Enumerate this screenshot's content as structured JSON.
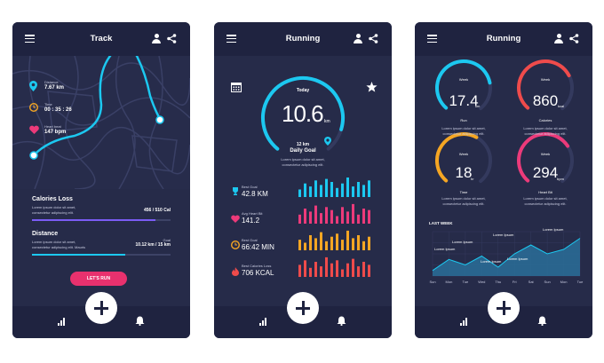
{
  "screens": [
    {
      "title": "Track",
      "stats": [
        {
          "label": "Distance",
          "value": "7.67 km"
        },
        {
          "label": "Time",
          "value": "00 : 35 : 26"
        },
        {
          "label": "Heart beat",
          "value": "147 bpm"
        }
      ],
      "calories": {
        "title": "Calories Loss",
        "desc1": "Lorem ipsum dolor sit amet,",
        "desc2": "consectetur adipiscing elit.",
        "value": "456 / 510 Cal",
        "progress": 0.89
      },
      "distance": {
        "title": "Distance",
        "desc1": "Lorem ipsum dolor sit amet,",
        "desc2": "consectetur adipiscing elit. Mauris",
        "unit_label": "Goal",
        "value": "10.12 km / 15 km",
        "progress": 0.67
      },
      "cta": "LET'S RUN"
    },
    {
      "title": "Running",
      "gauge": {
        "top": "Today",
        "value": "10.6",
        "unit": "km",
        "goal": "12 km",
        "goal_label": "Daily Goal",
        "desc1": "Lorem ipsum dolor sit amet,",
        "desc2": "consectetur adipiscing elit.",
        "fraction": 0.88
      },
      "metrics": [
        {
          "label": "Best Goal",
          "value": "42.8 KM",
          "color": "#1cc8f0",
          "values": [
            10,
            18,
            14,
            22,
            16,
            24,
            20,
            12,
            18,
            26,
            14,
            20,
            16,
            22
          ]
        },
        {
          "label": "Avg Heart Bit",
          "value": "141.2",
          "color": "#ec3a7a",
          "values": [
            12,
            20,
            16,
            24,
            14,
            22,
            18,
            10,
            22,
            16,
            26,
            12,
            20,
            18
          ]
        },
        {
          "label": "Best Goal",
          "value": "66:42 MIN",
          "color": "#f5a623",
          "values": [
            14,
            10,
            20,
            16,
            24,
            12,
            18,
            22,
            14,
            26,
            16,
            20,
            12,
            18
          ]
        },
        {
          "label": "Best Calories Loss",
          "value": "706 KCAL",
          "color": "#ef4b4b",
          "values": [
            16,
            22,
            12,
            20,
            14,
            26,
            18,
            22,
            10,
            18,
            24,
            14,
            20,
            16
          ]
        }
      ]
    },
    {
      "title": "Running",
      "gauges": [
        {
          "top": "Week",
          "value": "17.4",
          "unit": "km",
          "label": "Run",
          "color": "#1cc8f0",
          "fraction": 0.78
        },
        {
          "top": "Week",
          "value": "860",
          "unit": "kcal",
          "label": "Calories",
          "color": "#ef4b4b",
          "fraction": 0.72
        },
        {
          "top": "Week",
          "value": "18",
          "unit": "hr",
          "label": "Time",
          "color": "#f5a623",
          "fraction": 0.6
        },
        {
          "top": "Week",
          "value": "294",
          "unit": "bpm",
          "label": "Heart Bit",
          "color": "#ec3a7a",
          "fraction": 0.7
        }
      ],
      "gauge_desc1": "Lorem ipsum dolor sit amet,",
      "gauge_desc2": "consectetur adipiscing elit.",
      "chart_title": "LAST WEEK",
      "chart_data": {
        "type": "area",
        "title": "LAST WEEK",
        "categories": [
          "Sun",
          "Mon",
          "Tue",
          "Wed",
          "Thu",
          "Fri",
          "Sat",
          "Sun",
          "Mon",
          "Tue"
        ],
        "values": [
          5,
          15,
          10,
          18,
          8,
          20,
          28,
          20,
          24,
          34
        ],
        "ylim": [
          0,
          40
        ],
        "annotations": [
          "Lorem Ipsum",
          "Lorem Ipsum",
          "Lorem Ipsum",
          "Lorem Ipsum",
          "Lorem Ipsum",
          "Lorem Ipsum"
        ]
      }
    }
  ],
  "colors": {
    "bg": "#262b49",
    "header": "#1f2340",
    "cyan": "#1cc8f0",
    "pink": "#ec3a7a",
    "orange": "#f5a623",
    "red": "#ef4b4b",
    "purple": "#7b5cf5"
  },
  "icons": [
    "menu-icon",
    "user-icon",
    "share-icon",
    "plus-icon",
    "bar-chart-icon",
    "bell-icon",
    "calendar-icon",
    "star-icon",
    "pin-icon",
    "clock-icon",
    "heart-icon",
    "trophy-icon",
    "flame-icon"
  ]
}
